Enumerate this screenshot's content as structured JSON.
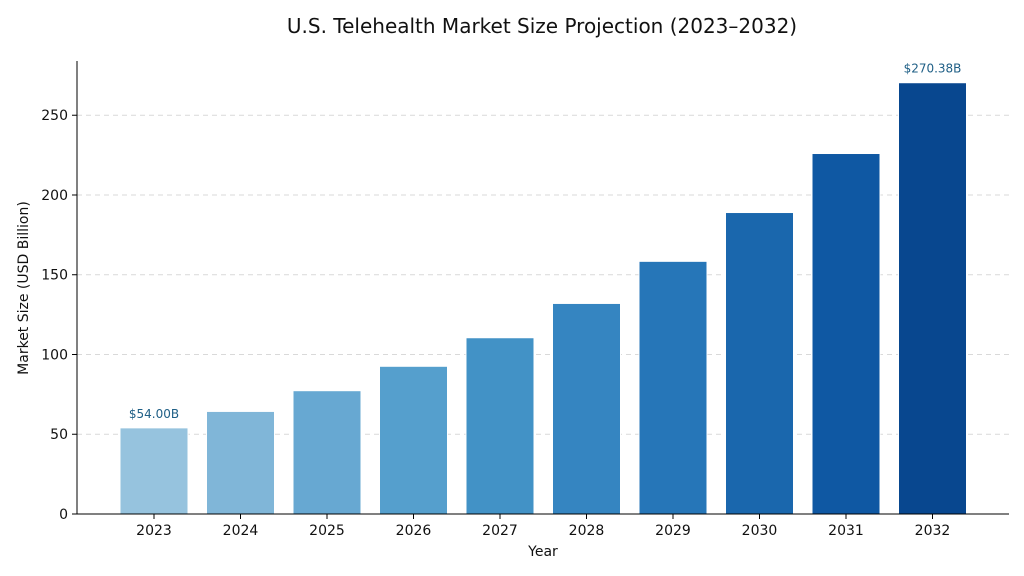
{
  "chart_data": {
    "type": "bar",
    "title": "U.S. Telehealth Market Size Projection (2023–2032)",
    "xlabel": "Year",
    "ylabel": "Market Size (USD Billion)",
    "categories": [
      "2023",
      "2024",
      "2025",
      "2026",
      "2027",
      "2028",
      "2029",
      "2030",
      "2031",
      "2032"
    ],
    "values": [
      54.0,
      64.3,
      77.3,
      92.6,
      110.5,
      132.0,
      158.4,
      189.0,
      226.0,
      270.38
    ],
    "ylim": [
      0,
      284
    ],
    "yticks": [
      0,
      50,
      100,
      150,
      200,
      250
    ],
    "grid": "y-dashed",
    "colors": [
      "#96c3de",
      "#80b6d8",
      "#67a8d2",
      "#559fcd",
      "#4292c6",
      "#3585c1",
      "#2676b8",
      "#1a67ad",
      "#0f58a3",
      "#08478f"
    ],
    "data_labels": [
      {
        "index": 0,
        "text": "$54.00B"
      },
      {
        "index": 9,
        "text": "$270.38B"
      }
    ]
  }
}
